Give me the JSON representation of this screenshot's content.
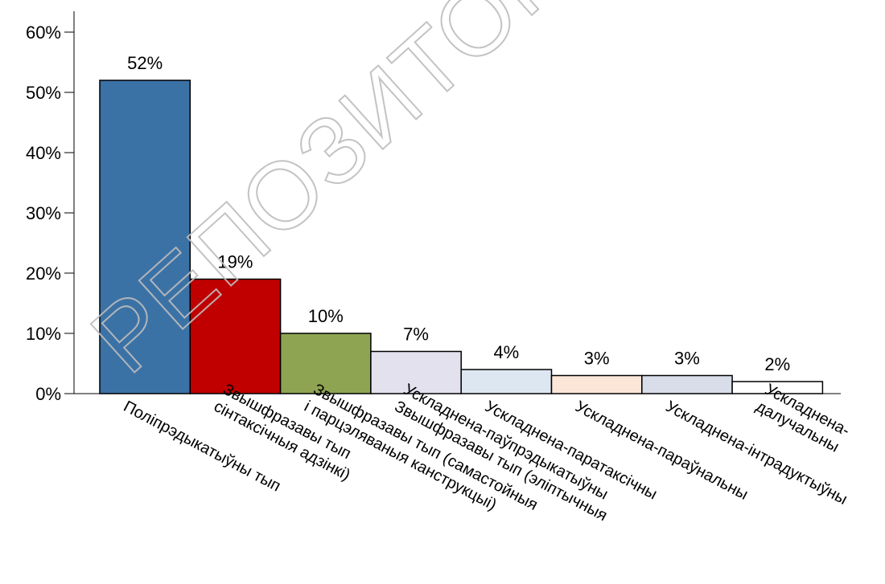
{
  "chart_data": {
    "type": "bar",
    "title": "",
    "xlabel": "",
    "ylabel": "",
    "ylim": [
      0,
      60
    ],
    "y_ticks": [
      {
        "value": 0,
        "label": "0%"
      },
      {
        "value": 10,
        "label": "10%"
      },
      {
        "value": 20,
        "label": "20%"
      },
      {
        "value": 30,
        "label": "30%"
      },
      {
        "value": 40,
        "label": "40%"
      },
      {
        "value": 50,
        "label": "50%"
      },
      {
        "value": 60,
        "label": "60%"
      }
    ],
    "grid": false,
    "legend": "none",
    "categories": [
      [
        "Полiпрэдыкатыўны тып"
      ],
      [
        "Звышфразавы тып",
        "сiнтаксiчныя адзiнкi)"
      ],
      [
        "Звышфразавы тып (самастойныя",
        "i парцэляваныя канструкцыi)"
      ],
      [
        "Ускладнена-паўпрэдыкатыўны",
        "Звышфразавы тып (элiптычныя"
      ],
      [
        "Ускладнена-паратаксiчны"
      ],
      [
        "Ускладнена-параўнальны"
      ],
      [
        "Ускладнена-iнтрадуктыўны"
      ],
      [
        "Ускладнена-",
        "далучальны"
      ]
    ],
    "values": [
      52,
      19,
      10,
      7,
      4,
      3,
      3,
      2
    ],
    "value_labels": [
      "52%",
      "19%",
      "10%",
      "7%",
      "4%",
      "3%",
      "3%",
      "2%"
    ],
    "bar_colors": [
      "#3b72a6",
      "#c00000",
      "#8ea452",
      "#e4e1ee",
      "#dde7f1",
      "#fbe6d8",
      "#d8dde9",
      "#ffffff"
    ]
  },
  "watermark": {
    "text": "РЕПОЗИТОРИЙ",
    "color": "#bdbdbd"
  }
}
